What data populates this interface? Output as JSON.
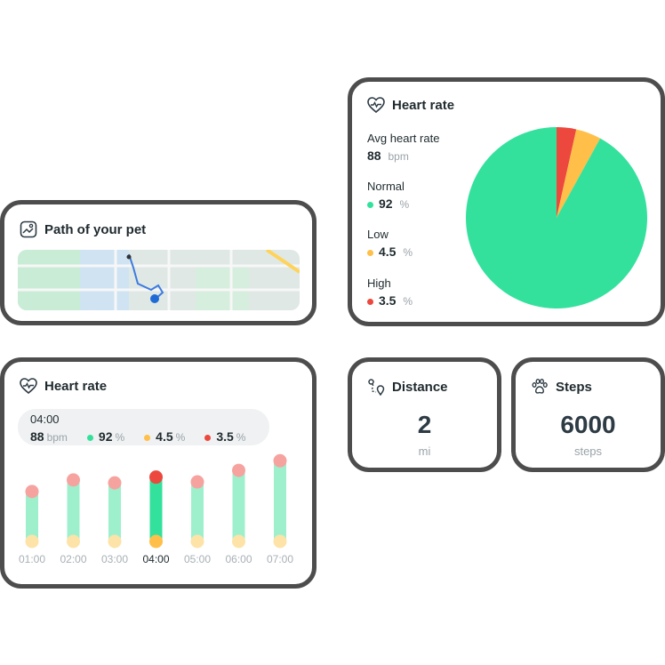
{
  "path_card": {
    "title": "Path of your pet",
    "icon": "map-icon"
  },
  "heart_rate_summary": {
    "title": "Heart rate",
    "icon": "heart-pulse-icon",
    "avg_label": "Avg heart rate",
    "avg_value": "88",
    "avg_unit": "bpm",
    "normal_label": "Normal",
    "normal_value": "92",
    "low_label": "Low",
    "low_value": "4.5",
    "high_label": "High",
    "high_value": "3.5",
    "percent": "%",
    "colors": {
      "normal": "#33e19c",
      "low": "#ffbf48",
      "high": "#ec483e"
    }
  },
  "heart_rate_bars": {
    "title": "Heart rate",
    "icon": "heart-pulse-icon",
    "selected_time": "04:00",
    "avg_value": "88",
    "avg_unit": "bpm",
    "normal_value": "92",
    "low_value": "4.5",
    "high_value": "3.5",
    "percent": "%"
  },
  "distance_card": {
    "title": "Distance",
    "icon": "route-icon",
    "value": "2",
    "unit": "mi"
  },
  "steps_card": {
    "title": "Steps",
    "icon": "paw-icon",
    "value": "6000",
    "unit": "steps"
  },
  "chart_data": [
    {
      "type": "pie",
      "labels": [
        "Normal",
        "Low",
        "High"
      ],
      "values": [
        92,
        4.5,
        3.5
      ],
      "colors": [
        "#33e19c",
        "#ffbf48",
        "#ec483e"
      ]
    },
    {
      "type": "bar",
      "categories": [
        "01:00",
        "02:00",
        "03:00",
        "04:00",
        "05:00",
        "06:00",
        "07:00"
      ],
      "selected": "04:00",
      "range_top": [
        0.52,
        0.64,
        0.61,
        0.67,
        0.62,
        0.74,
        0.84
      ],
      "range_bottom": [
        0.0,
        0.0,
        0.0,
        0.0,
        0.0,
        0.0,
        0.0
      ]
    }
  ]
}
